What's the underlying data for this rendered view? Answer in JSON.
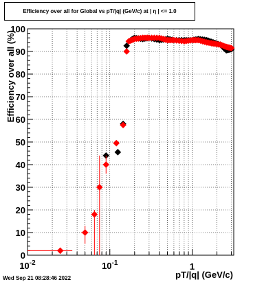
{
  "chart_data": {
    "type": "scatter",
    "title": "Efficiency over all for Global vs pT/|q| (GeV/c) at |  η  | <= 1.0",
    "xlabel": "pT/|q| (GeV/c)",
    "ylabel": "Efficiency over all (%)",
    "xscale": "log",
    "xlim": [
      0.01,
      3.2
    ],
    "ylim": [
      0,
      100
    ],
    "grid": true,
    "x_tick_labels": [
      "10^-2",
      "10^-1",
      "1"
    ],
    "y_tick_labels": [
      "0",
      "10",
      "20",
      "30",
      "40",
      "50",
      "60",
      "70",
      "80",
      "90",
      "100"
    ],
    "series": [
      {
        "color": "#000000",
        "marker": "diamond",
        "points": [
          {
            "x": 0.09,
            "y": 44
          },
          {
            "x": 0.125,
            "y": 45.5
          },
          {
            "x": 0.145,
            "y": 58
          },
          {
            "x": 0.16,
            "y": 92.5
          },
          {
            "x": 0.18,
            "y": 95
          },
          {
            "x": 0.2,
            "y": 96
          },
          {
            "x": 0.25,
            "y": 95.5
          },
          {
            "x": 0.3,
            "y": 96
          },
          {
            "x": 0.4,
            "y": 95
          },
          {
            "x": 0.5,
            "y": 95.5
          },
          {
            "x": 0.6,
            "y": 95
          },
          {
            "x": 0.8,
            "y": 95
          },
          {
            "x": 1.0,
            "y": 95
          },
          {
            "x": 1.2,
            "y": 95.5
          },
          {
            "x": 1.5,
            "y": 95
          },
          {
            "x": 1.8,
            "y": 94
          },
          {
            "x": 2.2,
            "y": 93
          },
          {
            "x": 2.6,
            "y": 90.5
          },
          {
            "x": 3.0,
            "y": 91
          }
        ]
      },
      {
        "color": "#ff0000",
        "marker": "diamond",
        "points": [
          {
            "x": 0.025,
            "y": 2,
            "xerr": [
              0.01,
              0.035
            ],
            "yerr": [
              1.5,
              2.5
            ]
          },
          {
            "x": 0.05,
            "y": 10,
            "xerr": [
              0.045,
              0.055
            ],
            "yerr": [
              5,
              13
            ]
          },
          {
            "x": 0.065,
            "y": 18,
            "xerr": [
              0.06,
              0.07
            ],
            "yerr": [
              0,
              20
            ]
          },
          {
            "x": 0.075,
            "y": 30,
            "xerr": [
              0.07,
              0.08
            ],
            "yerr": [
              0,
              44
            ]
          },
          {
            "x": 0.09,
            "y": 40,
            "xerr": [
              0.085,
              0.095
            ],
            "yerr": [
              36,
              44
            ]
          },
          {
            "x": 0.12,
            "y": 49.5
          },
          {
            "x": 0.145,
            "y": 57.5
          },
          {
            "x": 0.16,
            "y": 90
          },
          {
            "x": 0.17,
            "y": 94.5
          },
          {
            "x": 0.2,
            "y": 95.5
          },
          {
            "x": 0.25,
            "y": 96
          },
          {
            "x": 0.3,
            "y": 96
          },
          {
            "x": 0.4,
            "y": 96
          },
          {
            "x": 0.5,
            "y": 95
          },
          {
            "x": 0.6,
            "y": 95
          },
          {
            "x": 0.8,
            "y": 94.5
          },
          {
            "x": 1.0,
            "y": 95
          },
          {
            "x": 1.2,
            "y": 95
          },
          {
            "x": 1.5,
            "y": 94
          },
          {
            "x": 1.8,
            "y": 93.5
          },
          {
            "x": 2.2,
            "y": 93
          },
          {
            "x": 2.6,
            "y": 92
          },
          {
            "x": 3.0,
            "y": 91.5
          }
        ]
      }
    ]
  },
  "footer": "Wed Sep 21 08:28:46 2022"
}
